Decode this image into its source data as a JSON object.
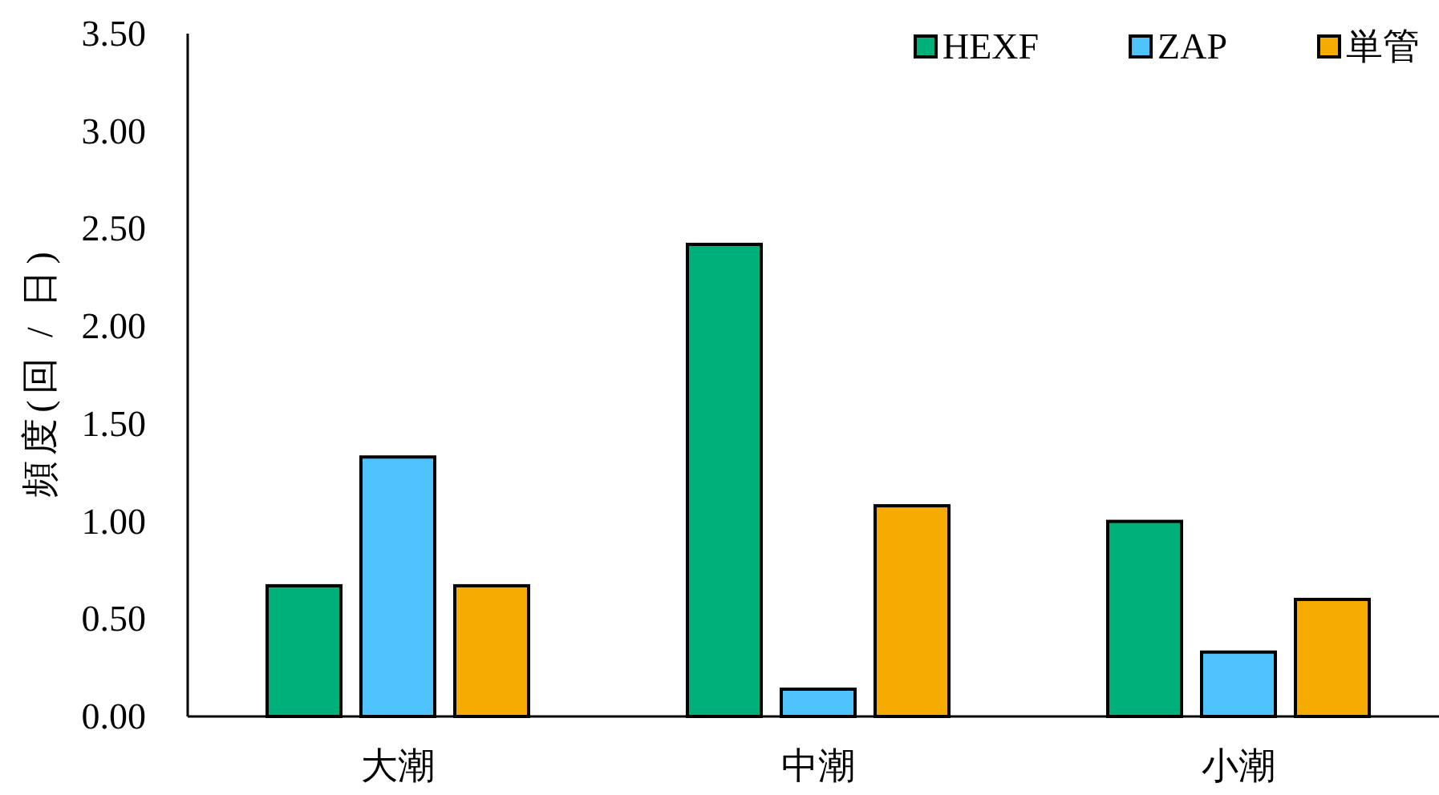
{
  "chart_data": {
    "type": "bar",
    "ylabel": "頻度(回 / 日)",
    "categories": [
      "大潮",
      "中潮",
      "小潮"
    ],
    "series": [
      {
        "name": "HEXF",
        "color": "#00b07b",
        "values": [
          0.67,
          2.42,
          1.0
        ]
      },
      {
        "name": "ZAP",
        "color": "#4fc3fe",
        "values": [
          1.33,
          0.14,
          0.33
        ]
      },
      {
        "name": "単管",
        "color": "#f5ab00",
        "values": [
          0.67,
          1.08,
          0.6
        ]
      }
    ],
    "ylim": [
      0,
      3.5
    ],
    "yticks": [
      {
        "value": 0,
        "label": "0.00"
      },
      {
        "value": 0.5,
        "label": "0.50"
      },
      {
        "value": 1,
        "label": "1.00"
      },
      {
        "value": 1.5,
        "label": "1.50"
      },
      {
        "value": 2,
        "label": "2.00"
      },
      {
        "value": 2.5,
        "label": "2.50"
      },
      {
        "value": 3,
        "label": "3.00"
      },
      {
        "value": 3.5,
        "label": "3.50"
      }
    ],
    "legend": "top right"
  }
}
